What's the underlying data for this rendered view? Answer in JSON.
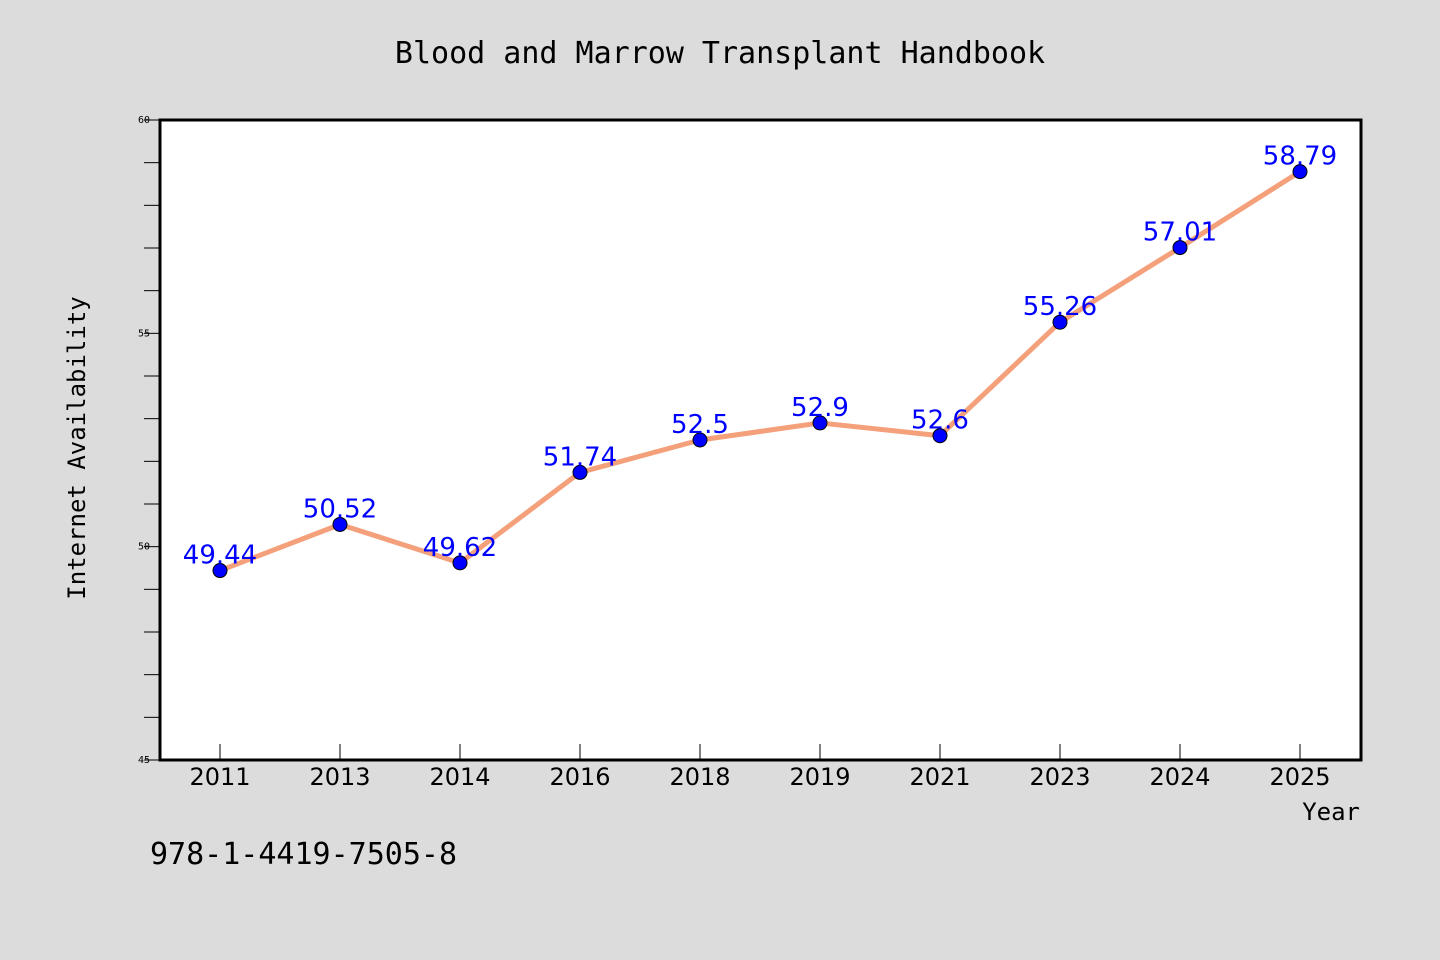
{
  "chart_data": {
    "type": "line",
    "title": "Blood and Marrow Transplant Handbook",
    "xlabel": "Year",
    "ylabel": "Internet Availability",
    "categories": [
      "2011",
      "2013",
      "2014",
      "2016",
      "2018",
      "2019",
      "2021",
      "2023",
      "2024",
      "2025"
    ],
    "series": [
      {
        "values": [
          49.44,
          50.52,
          49.62,
          51.74,
          52.5,
          52.9,
          52.6,
          55.26,
          57.01,
          58.79
        ],
        "data_labels": [
          "49.44",
          "50.52",
          "49.62",
          "51.74",
          "52.5",
          "52.9",
          "52.6",
          "55.26",
          "57.01",
          "58.79"
        ]
      }
    ],
    "ylim": [
      45,
      60
    ],
    "yticks": [
      "45",
      "50",
      "55",
      "60"
    ],
    "line_color": "#f4a07a",
    "marker_color": "#0000ff",
    "label_color": "#0000ff",
    "grid": false,
    "legend": "none"
  },
  "footer": {
    "isbn": "978-1-4419-7505-8"
  },
  "colors": {
    "background": "#dcdcdc",
    "plot_background": "#ffffff",
    "axis": "#000000"
  }
}
